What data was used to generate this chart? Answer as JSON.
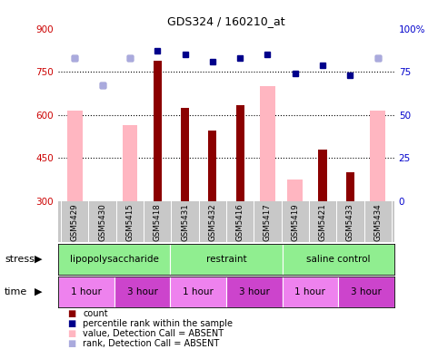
{
  "title": "GDS324 / 160210_at",
  "samples": [
    "GSM5429",
    "GSM5430",
    "GSM5415",
    "GSM5418",
    "GSM5431",
    "GSM5432",
    "GSM5416",
    "GSM5417",
    "GSM5419",
    "GSM5421",
    "GSM5433",
    "GSM5434"
  ],
  "count_values": [
    null,
    null,
    null,
    790,
    625,
    545,
    635,
    null,
    null,
    480,
    400,
    null
  ],
  "absent_value_bars": [
    615,
    null,
    565,
    null,
    null,
    null,
    null,
    700,
    375,
    null,
    null,
    615
  ],
  "percentile_rank_dots": [
    83,
    67,
    83,
    87,
    85,
    81,
    83,
    85,
    74,
    79,
    73,
    83
  ],
  "absent_rank_dots": [
    83,
    67,
    83,
    null,
    null,
    null,
    null,
    null,
    null,
    null,
    null,
    83
  ],
  "ylim_left": [
    300,
    900
  ],
  "ylim_right": [
    0,
    100
  ],
  "yticks_left": [
    300,
    450,
    600,
    750,
    900
  ],
  "yticks_right": [
    0,
    25,
    50,
    75,
    100
  ],
  "bar_color_dark": "#8B0000",
  "bar_color_absent": "#FFB6C1",
  "dot_color_present": "#00008B",
  "dot_color_absent": "#AAAADD",
  "axis_label_color_left": "#CC0000",
  "axis_label_color_right": "#0000CC",
  "plot_bg": "#FFFFFF",
  "tick_area_bg": "#C8C8C8",
  "stress_color": "#90EE90",
  "time_color_1": "#EE82EE",
  "time_color_3": "#CC44CC"
}
